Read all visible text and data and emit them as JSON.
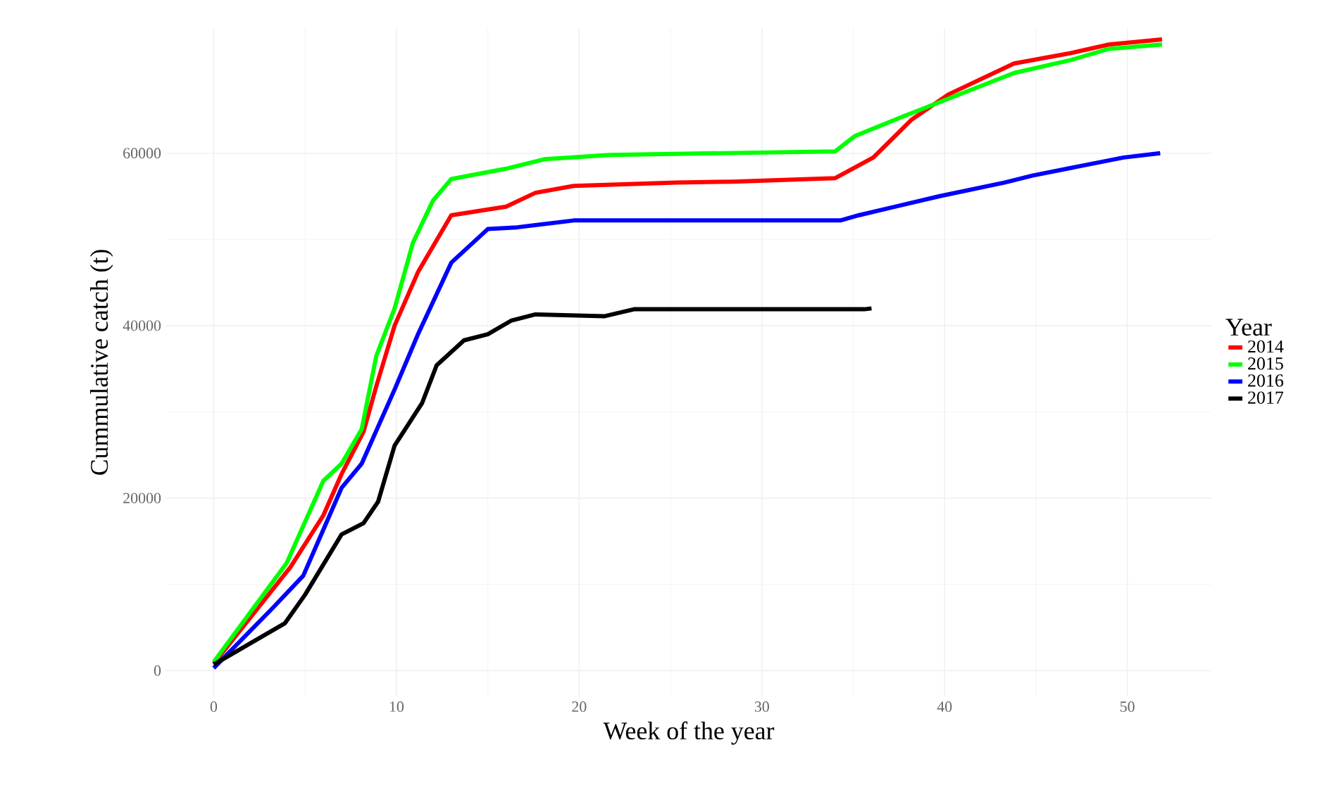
{
  "chart_data": {
    "type": "line",
    "xlabel": "Week of the year",
    "ylabel": "Cummulative catch (t)",
    "legend_title": "Year",
    "legend": "right",
    "grid": true,
    "xlim": [
      -2.6,
      54.6
    ],
    "ylim": [
      -3000,
      74500
    ],
    "xticks": [
      0,
      10,
      20,
      30,
      40,
      50
    ],
    "yticks": [
      0,
      20000,
      40000,
      60000
    ],
    "series": [
      {
        "name": "2014",
        "color": "#ff0000",
        "x": [
          0,
          4.2,
          6,
          7,
          8.2,
          8.9,
          9.9,
          11.2,
          13,
          16,
          17.6,
          19.7,
          25.3,
          28.4,
          34,
          36.1,
          38.2,
          40.2,
          43.8,
          46.9,
          49,
          51.9
        ],
        "values": [
          800,
          12000,
          18000,
          22800,
          27700,
          33000,
          40000,
          46300,
          52800,
          53800,
          55400,
          56200,
          56600,
          56700,
          57100,
          59500,
          63900,
          66800,
          70400,
          71600,
          72600,
          73200
        ]
      },
      {
        "name": "2015",
        "color": "#00ff00",
        "x": [
          0,
          4,
          6,
          7,
          8.1,
          8.9,
          9.9,
          10.9,
          12,
          13,
          16,
          18.1,
          21.7,
          34,
          35.1,
          37.9,
          39.7,
          43.8,
          46.9,
          49,
          51.9
        ],
        "values": [
          1000,
          12500,
          22000,
          24000,
          28000,
          36500,
          42000,
          49600,
          54500,
          57000,
          58200,
          59300,
          59800,
          60200,
          62000,
          64400,
          65900,
          69300,
          70800,
          72100,
          72600
        ]
      },
      {
        "name": "2016",
        "color": "#0000ff",
        "x": [
          0,
          3.2,
          4.9,
          7,
          8.1,
          9.9,
          11.2,
          13,
          15,
          16.6,
          19.7,
          29.4,
          34.3,
          35.3,
          39.7,
          43.3,
          44.8,
          49.8,
          51.8
        ],
        "values": [
          300,
          7200,
          11000,
          21200,
          24000,
          32600,
          39100,
          47300,
          51200,
          51400,
          52200,
          52200,
          52200,
          52800,
          55000,
          56600,
          57400,
          59500,
          60000
        ]
      },
      {
        "name": "2017",
        "color": "#000000",
        "x": [
          0,
          3.9,
          5,
          7,
          8.2,
          9,
          9.9,
          11.4,
          12.2,
          13.7,
          15,
          16.3,
          17.6,
          21.4,
          23,
          35.6,
          36
        ],
        "values": [
          700,
          5500,
          8800,
          15800,
          17100,
          19600,
          26100,
          31000,
          35400,
          38300,
          39000,
          40600,
          41300,
          41100,
          41900,
          41900,
          42000
        ]
      }
    ]
  }
}
